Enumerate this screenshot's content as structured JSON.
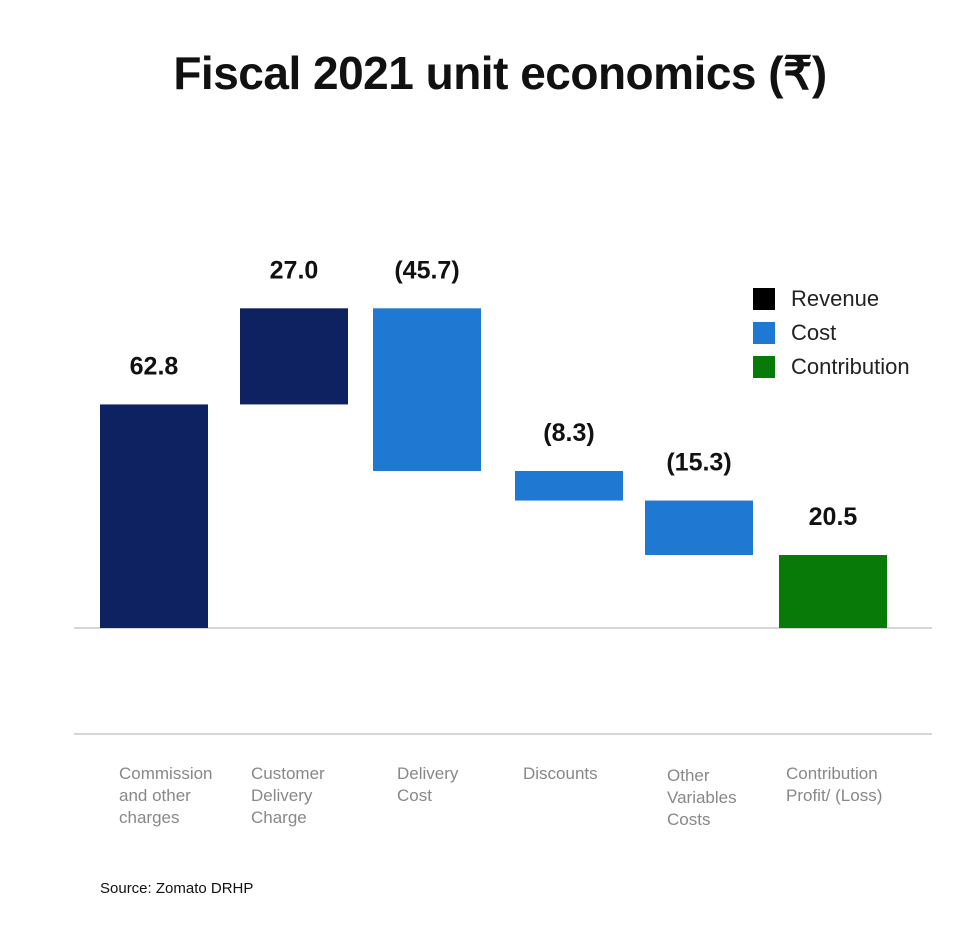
{
  "colors": {
    "revenue": "#0e2161",
    "cost": "#1f78d1",
    "contribution": "#087a08",
    "legend_revenue": "#000000",
    "axis": "#d6d6d6",
    "label": "#888888"
  },
  "legend": {
    "revenue": "Revenue",
    "cost": "Cost",
    "contribution": "Contribution"
  },
  "source": "Source: Zomato DRHP",
  "chart_data": {
    "type": "bar",
    "subtype": "waterfall",
    "title": "Fiscal 2021 unit economics (₹)",
    "categories": [
      "Commission\nand other\ncharges",
      "Customer\nDelivery\nCharge",
      "Delivery\nCost",
      "Discounts",
      "Other\nVariables\nCosts",
      "Contribution\nProfit/ (Loss)"
    ],
    "values": [
      62.8,
      27.0,
      -45.7,
      -8.3,
      -15.3,
      20.5
    ],
    "data_labels": [
      "62.8",
      "27.0",
      "(45.7)",
      "(8.3)",
      "(15.3)",
      "20.5"
    ],
    "kinds": [
      "revenue",
      "revenue",
      "cost",
      "cost",
      "cost",
      "contribution"
    ],
    "legend_position": "top-right",
    "grid": false
  }
}
